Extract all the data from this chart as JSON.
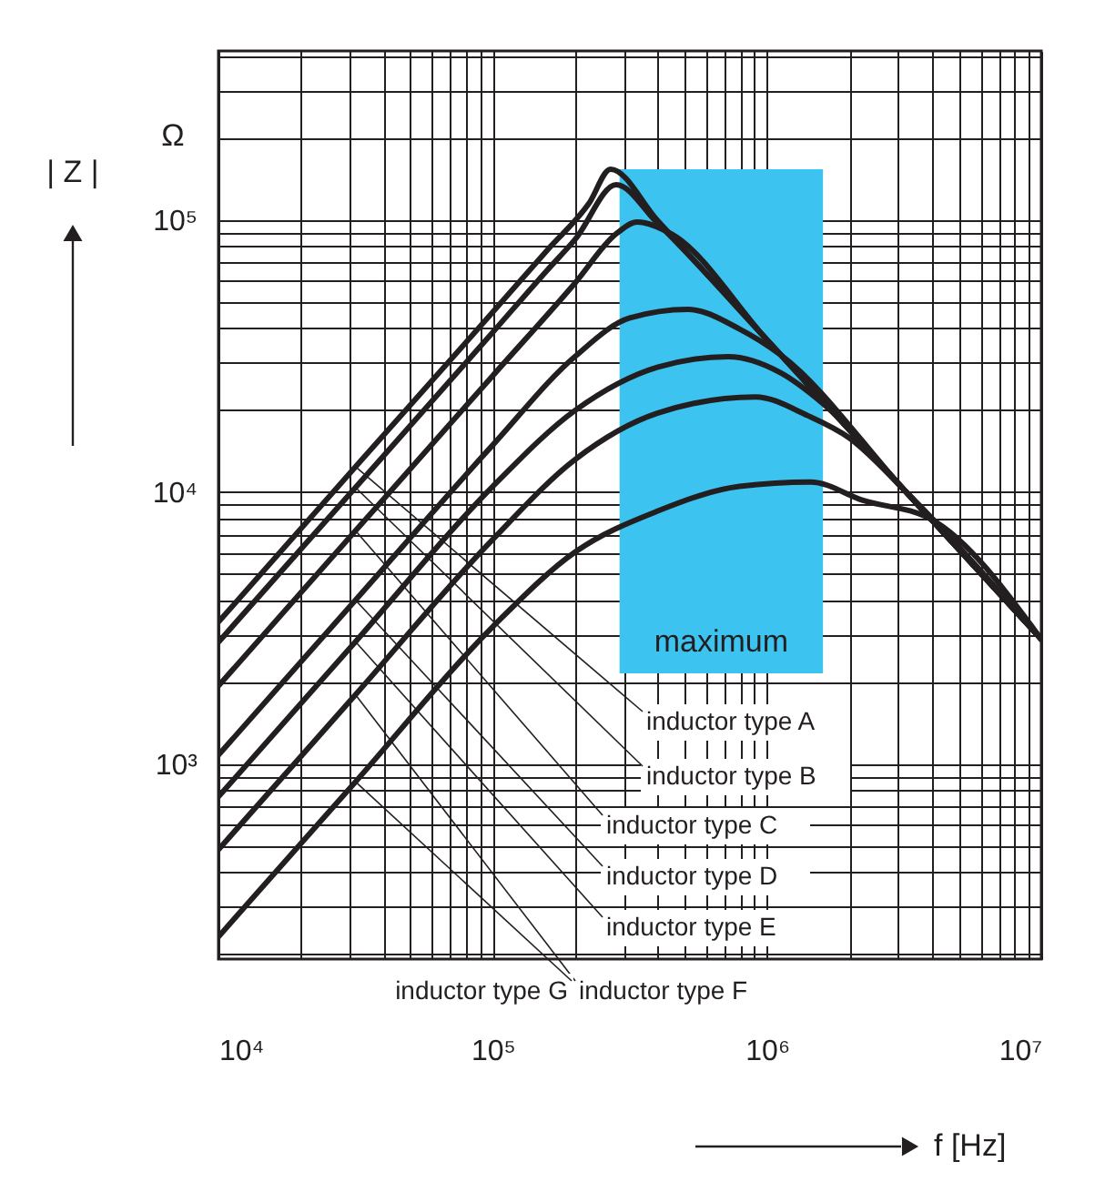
{
  "chart_data": {
    "type": "line",
    "xlabel": "f  [Hz]",
    "ylabel": "| Z |",
    "annotations": [
      "Ω"
    ],
    "log": "xy",
    "grid": true,
    "legend": false,
    "line_style": "solid",
    "marker": "none",
    "xlim": [
      10000,
      10000000
    ],
    "ylim": [
      192,
      419000
    ],
    "xticks": [
      {
        "value": 10000,
        "label": "10⁴"
      },
      {
        "value": 20000,
        "label": null
      },
      {
        "value": 30000,
        "label": null
      },
      {
        "value": 40000,
        "label": null
      },
      {
        "value": 50000,
        "label": null
      },
      {
        "value": 60000,
        "label": null
      },
      {
        "value": 70000,
        "label": null
      },
      {
        "value": 80000,
        "label": null
      },
      {
        "value": 90000,
        "label": null
      },
      {
        "value": 100000,
        "label": "10⁵"
      },
      {
        "value": 200000,
        "label": null
      },
      {
        "value": 300000,
        "label": null
      },
      {
        "value": 400000,
        "label": null
      },
      {
        "value": 500000,
        "label": null
      },
      {
        "value": 600000,
        "label": null
      },
      {
        "value": 700000,
        "label": null
      },
      {
        "value": 800000,
        "label": null
      },
      {
        "value": 900000,
        "label": null
      },
      {
        "value": 1000000,
        "label": "10⁶"
      },
      {
        "value": 2000000,
        "label": null
      },
      {
        "value": 3000000,
        "label": null
      },
      {
        "value": 4000000,
        "label": null
      },
      {
        "value": 5000000,
        "label": null
      },
      {
        "value": 6000000,
        "label": null
      },
      {
        "value": 7000000,
        "label": null
      },
      {
        "value": 8000000,
        "label": null
      },
      {
        "value": 9000000,
        "label": null
      },
      {
        "value": 10000000,
        "label": "10⁷"
      }
    ],
    "yticks": [
      {
        "value": 200,
        "label": null
      },
      {
        "value": 300,
        "label": null
      },
      {
        "value": 400,
        "label": null
      },
      {
        "value": 500,
        "label": null
      },
      {
        "value": 600,
        "label": null
      },
      {
        "value": 700,
        "label": null
      },
      {
        "value": 800,
        "label": null
      },
      {
        "value": 900,
        "label": null
      },
      {
        "value": 1000,
        "label": "10³"
      },
      {
        "value": 2000,
        "label": null
      },
      {
        "value": 3000,
        "label": null
      },
      {
        "value": 4000,
        "label": null
      },
      {
        "value": 5000,
        "label": null
      },
      {
        "value": 6000,
        "label": null
      },
      {
        "value": 7000,
        "label": null
      },
      {
        "value": 8000,
        "label": null
      },
      {
        "value": 9000,
        "label": null
      },
      {
        "value": 10000,
        "label": "10⁴"
      },
      {
        "value": 20000,
        "label": null
      },
      {
        "value": 30000,
        "label": null
      },
      {
        "value": 40000,
        "label": null
      },
      {
        "value": 50000,
        "label": null
      },
      {
        "value": 60000,
        "label": null
      },
      {
        "value": 70000,
        "label": null
      },
      {
        "value": 80000,
        "label": null
      },
      {
        "value": 90000,
        "label": null
      },
      {
        "value": 100000,
        "label": "10⁵"
      },
      {
        "value": 200000,
        "label": null
      },
      {
        "value": 300000,
        "label": null
      },
      {
        "value": 400000,
        "label": null
      }
    ],
    "bands": [
      {
        "axis": "x",
        "from": 290000,
        "to": 1600000,
        "label": "maximum",
        "color": "#3cc3f0"
      }
    ],
    "series": [
      {
        "name": "inductor type A",
        "color": "#231f20",
        "x": [
          10000,
          31600,
          100000,
          158000,
          224000,
          269000,
          398000,
          1000000,
          3160000,
          10000000
        ],
        "values": [
          3330,
          12400,
          45900,
          77600,
          115000,
          154000,
          100000,
          36300,
          10200,
          2880
        ]
      },
      {
        "name": "inductor type B",
        "color": "#231f20",
        "x": [
          10000,
          31600,
          100000,
          158000,
          200000,
          282000,
          398000,
          1000000,
          3160000,
          10000000
        ],
        "values": [
          2810,
          10400,
          38700,
          65500,
          85100,
          135000,
          97700,
          36300,
          10200,
          2880
        ]
      },
      {
        "name": "inductor type C",
        "color": "#231f20",
        "x": [
          10000,
          31600,
          100000,
          200000,
          282000,
          336000,
          447000,
          1000000,
          3160000,
          10000000
        ],
        "values": [
          1940,
          7210,
          26800,
          58900,
          89100,
          98400,
          89100,
          36300,
          10200,
          2880
        ]
      },
      {
        "name": "inductor type D",
        "color": "#231f20",
        "x": [
          10000,
          31600,
          100000,
          200000,
          316000,
          515000,
          794000,
          1120000,
          3160000,
          10000000
        ],
        "values": [
          1080,
          4010,
          14900,
          31600,
          43700,
          47000,
          39800,
          32000,
          10200,
          2880
        ]
      },
      {
        "name": "inductor type E",
        "color": "#231f20",
        "x": [
          10000,
          31600,
          100000,
          200000,
          398000,
          721000,
          1120000,
          1580000,
          3160000,
          10000000
        ],
        "values": [
          759,
          2820,
          10500,
          20000,
          28800,
          31500,
          27500,
          21400,
          10200,
          2880
        ]
      },
      {
        "name": "inductor type F",
        "color": "#231f20",
        "x": [
          10000,
          31600,
          100000,
          200000,
          398000,
          908000,
          1410000,
          2000000,
          3160000,
          10000000
        ],
        "values": [
          485,
          1800,
          6700,
          13200,
          19500,
          22400,
          19100,
          15800,
          10200,
          2880
        ]
      },
      {
        "name": "inductor type G",
        "color": "#231f20",
        "x": [
          10000,
          31600,
          100000,
          200000,
          398000,
          794000,
          1440000,
          2240000,
          3980000,
          10000000
        ],
        "values": [
          232,
          861,
          3200,
          6030,
          8510,
          10500,
          10900,
          9330,
          7940,
          2880
        ]
      }
    ]
  }
}
